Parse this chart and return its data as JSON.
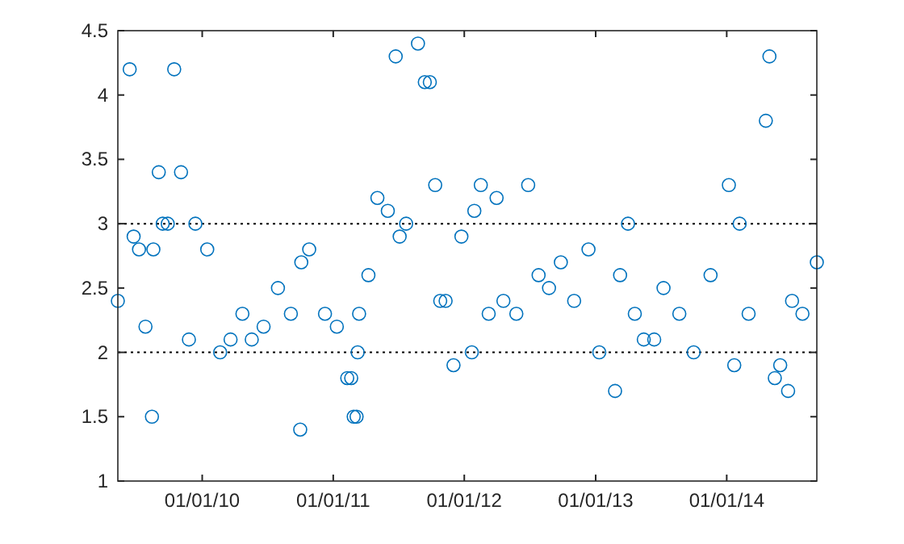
{
  "chart_data": {
    "type": "scatter",
    "marker": "circle",
    "grid": false,
    "x": [
      "2009-05-11",
      "2009-06-13",
      "2009-06-24",
      "2009-07-09",
      "2009-07-27",
      "2009-08-14",
      "2009-08-18",
      "2009-09-02",
      "2009-09-13",
      "2009-09-27",
      "2009-10-15",
      "2009-11-03",
      "2009-11-25",
      "2009-12-13",
      "2010-01-15",
      "2010-02-20",
      "2010-03-21",
      "2010-04-23",
      "2010-05-19",
      "2010-06-21",
      "2010-07-31",
      "2010-09-05",
      "2010-10-01",
      "2010-10-04",
      "2010-10-26",
      "2010-12-09",
      "2011-01-11",
      "2011-02-09",
      "2011-02-20",
      "2011-02-27",
      "2011-03-07",
      "2011-03-10",
      "2011-03-14",
      "2011-04-09",
      "2011-05-04",
      "2011-06-02",
      "2011-06-24",
      "2011-07-05",
      "2011-07-23",
      "2011-08-25",
      "2011-09-13",
      "2011-09-27",
      "2011-10-12",
      "2011-10-26",
      "2011-11-10",
      "2011-12-02",
      "2011-12-24",
      "2012-01-22",
      "2012-01-29",
      "2012-02-16",
      "2012-03-09",
      "2012-03-31",
      "2012-04-19",
      "2012-05-25",
      "2012-06-27",
      "2012-07-26",
      "2012-08-24",
      "2012-09-26",
      "2012-11-02",
      "2012-12-12",
      "2013-01-11",
      "2013-02-24",
      "2013-03-10",
      "2013-04-01",
      "2013-04-20",
      "2013-05-15",
      "2013-06-13",
      "2013-07-09",
      "2013-08-22",
      "2013-10-01",
      "2013-11-17",
      "2014-01-07",
      "2014-01-22",
      "2014-02-06",
      "2014-03-03",
      "2014-04-20",
      "2014-04-30",
      "2014-05-15",
      "2014-05-30",
      "2014-06-21",
      "2014-07-02",
      "2014-07-31",
      "2014-09-09"
    ],
    "series": [
      {
        "color": "#0072bd",
        "values": [
          2.4,
          4.2,
          2.9,
          2.8,
          2.2,
          1.5,
          2.8,
          3.4,
          3.0,
          3.0,
          4.2,
          3.4,
          2.1,
          3.0,
          2.8,
          2.0,
          2.1,
          2.3,
          2.1,
          2.2,
          2.5,
          2.3,
          1.4,
          2.7,
          2.8,
          2.3,
          2.2,
          1.8,
          1.8,
          1.5,
          1.5,
          2.0,
          2.3,
          2.6,
          3.2,
          3.1,
          4.3,
          2.9,
          3.0,
          4.4,
          4.1,
          4.1,
          3.3,
          2.4,
          2.4,
          1.9,
          2.9,
          2.0,
          3.1,
          3.3,
          2.3,
          3.2,
          2.4,
          2.3,
          3.3,
          2.6,
          2.5,
          2.7,
          2.4,
          2.8,
          2.0,
          1.7,
          2.6,
          3.0,
          2.3,
          2.1,
          2.1,
          2.5,
          2.3,
          2.0,
          2.6,
          3.3,
          1.9,
          3.0,
          2.3,
          3.8,
          4.3,
          1.8,
          1.9,
          1.7,
          2.4,
          2.3,
          2.7
        ]
      }
    ],
    "xlim": [
      "2009-05-11",
      "2014-09-09"
    ],
    "xticks": [
      {
        "value": "2010-01-01",
        "label": "01/01/10"
      },
      {
        "value": "2011-01-01",
        "label": "01/01/11"
      },
      {
        "value": "2012-01-01",
        "label": "01/01/12"
      },
      {
        "value": "2013-01-01",
        "label": "01/01/13"
      },
      {
        "value": "2014-01-01",
        "label": "01/01/14"
      }
    ],
    "ylim": [
      1,
      4.5
    ],
    "yticks": [
      1,
      1.5,
      2,
      2.5,
      3,
      3.5,
      4,
      4.5
    ],
    "ref_lines": [
      {
        "axis": "y",
        "value": 2,
        "color": "#000000",
        "line_style": "dotted"
      },
      {
        "axis": "y",
        "value": 3,
        "color": "#000000",
        "line_style": "dotted"
      }
    ]
  }
}
